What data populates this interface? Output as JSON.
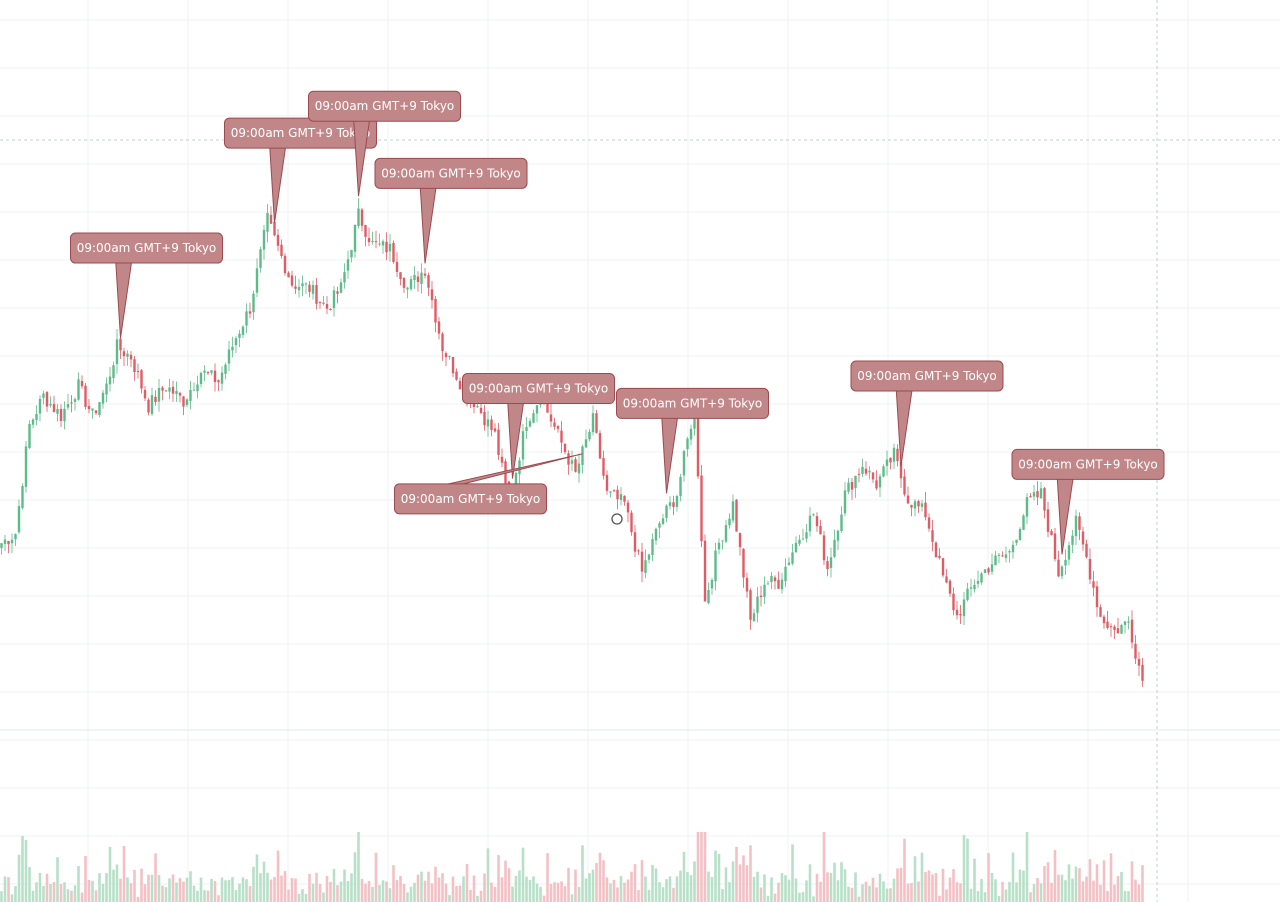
{
  "chart_data": {
    "type": "candlestick",
    "title": "",
    "xlabel": "",
    "ylabel": "",
    "grid": true,
    "legend": "none",
    "colors": {
      "up": "#5dbb8a",
      "down": "#e05b64",
      "up_volume": "#b8e0c9",
      "down_volume": "#f3c1c4",
      "callout_fill": "#c18688",
      "callout_border": "#9c4a4f",
      "grid": "#eef1f5",
      "crosshair": "#c5cbd3"
    },
    "ylim": [
      0,
      100
    ],
    "anchors": [
      [
        0,
        30
      ],
      [
        4,
        32
      ],
      [
        8,
        54
      ],
      [
        12,
        60
      ],
      [
        17,
        56
      ],
      [
        22,
        62
      ],
      [
        26,
        56
      ],
      [
        30,
        62
      ],
      [
        33,
        70
      ],
      [
        37,
        68
      ],
      [
        42,
        58
      ],
      [
        47,
        62
      ],
      [
        52,
        59
      ],
      [
        57,
        65
      ],
      [
        62,
        63
      ],
      [
        67,
        72
      ],
      [
        71,
        78
      ],
      [
        76,
        96
      ],
      [
        78,
        92
      ],
      [
        83,
        83
      ],
      [
        88,
        82
      ],
      [
        93,
        78
      ],
      [
        97,
        82
      ],
      [
        102,
        97
      ],
      [
        106,
        91
      ],
      [
        111,
        90
      ],
      [
        116,
        82
      ],
      [
        121,
        86
      ],
      [
        126,
        70
      ],
      [
        131,
        63
      ],
      [
        136,
        58
      ],
      [
        141,
        52
      ],
      [
        145,
        38
      ],
      [
        150,
        55
      ],
      [
        154,
        60
      ],
      [
        159,
        52
      ],
      [
        164,
        44
      ],
      [
        169,
        55
      ],
      [
        173,
        40
      ],
      [
        178,
        38
      ],
      [
        183,
        24
      ],
      [
        188,
        34
      ],
      [
        193,
        40
      ],
      [
        198,
        58
      ],
      [
        201,
        18
      ],
      [
        205,
        30
      ],
      [
        209,
        38
      ],
      [
        214,
        14
      ],
      [
        218,
        22
      ],
      [
        222,
        22
      ],
      [
        227,
        30
      ],
      [
        232,
        36
      ],
      [
        236,
        25
      ],
      [
        241,
        40
      ],
      [
        246,
        46
      ],
      [
        250,
        42
      ],
      [
        255,
        48
      ],
      [
        259,
        39
      ],
      [
        264,
        36
      ],
      [
        269,
        23
      ],
      [
        273,
        15
      ],
      [
        278,
        22
      ],
      [
        283,
        26
      ],
      [
        288,
        28
      ],
      [
        293,
        38
      ],
      [
        297,
        40
      ],
      [
        302,
        24
      ],
      [
        307,
        34
      ],
      [
        310,
        27
      ],
      [
        314,
        15
      ],
      [
        318,
        12
      ],
      [
        322,
        14
      ],
      [
        326,
        2
      ]
    ],
    "callouts": [
      {
        "label": "09:00am GMT+9 Tokyo",
        "x": 34,
        "side": "above"
      },
      {
        "label": "09:00am GMT+9 Tokyo",
        "x": 78,
        "side": "above"
      },
      {
        "label": "09:00am GMT+9 Tokyo",
        "x": 102,
        "side": "above"
      },
      {
        "label": "09:00am GMT+9 Tokyo",
        "x": 121,
        "side": "above"
      },
      {
        "label": "09:00am GMT+9 Tokyo",
        "x": 146,
        "side": "above"
      },
      {
        "label": "09:00am GMT+9 Tokyo",
        "x": 166,
        "side": "below"
      },
      {
        "label": "09:00am GMT+9 Tokyo",
        "x": 190,
        "side": "above"
      },
      {
        "label": "09:00am GMT+9 Tokyo",
        "x": 257,
        "side": "above"
      },
      {
        "label": "09:00am GMT+9 Tokyo",
        "x": 303,
        "side": "above"
      }
    ]
  }
}
